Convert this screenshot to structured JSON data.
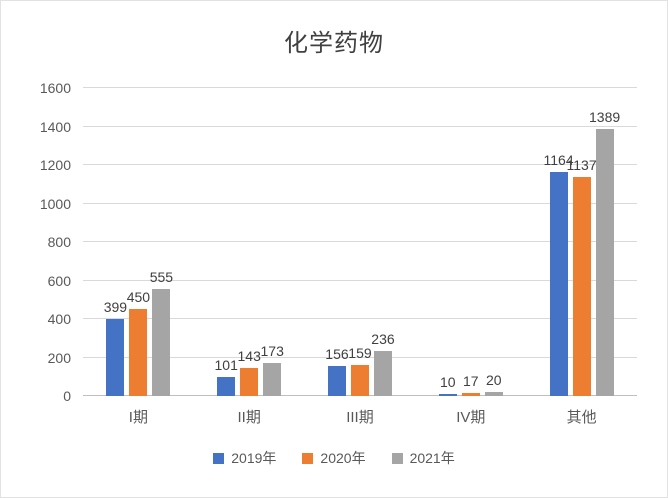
{
  "chart_data": {
    "type": "bar",
    "title": "化学药物",
    "categories": [
      "I期",
      "II期",
      "III期",
      "IV期",
      "其他"
    ],
    "series": [
      {
        "name": "2019年",
        "color": "#4472C4",
        "values": [
          399,
          101,
          156,
          10,
          1164
        ]
      },
      {
        "name": "2020年",
        "color": "#ED7D31",
        "values": [
          450,
          143,
          159,
          17,
          1137
        ]
      },
      {
        "name": "2021年",
        "color": "#A5A5A5",
        "values": [
          555,
          173,
          236,
          20,
          1389
        ]
      }
    ],
    "ylim": [
      0,
      1600
    ],
    "ytick_step": 200,
    "grid": true,
    "data_labels": true,
    "legend_position": "bottom",
    "xlabel": "",
    "ylabel": ""
  }
}
